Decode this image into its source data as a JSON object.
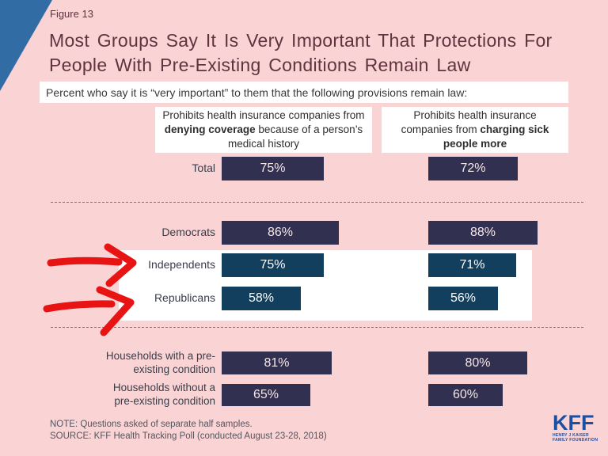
{
  "figure_label": "Figure 13",
  "title_line1": "Most Groups Say It Is Very Important That Protections For",
  "title_line2": "People With Pre-Existing Conditions Remain Law",
  "subtitle": "Percent who say it is “very important” to them that the following provisions remain law:",
  "column_headers": [
    {
      "pre": "Prohibits health insurance companies from ",
      "bold": "denying coverage",
      "post": " because of a person’s medical history"
    },
    {
      "pre": "Prohibits health insurance companies from ",
      "bold": "charging sick people more",
      "post": ""
    }
  ],
  "chart_data": {
    "type": "bar",
    "orientation": "horizontal",
    "unit": "%",
    "xlim": [
      0,
      100
    ],
    "categories": [
      "Total",
      "Democrats",
      "Independents",
      "Republicans",
      "Households with a pre-\nexisting condition",
      "Households without a\npre-existing condition"
    ],
    "series": [
      {
        "name": "Prohibits health insurance companies from denying coverage because of a person’s medical history",
        "values": [
          75,
          86,
          75,
          58,
          81,
          65
        ]
      },
      {
        "name": "Prohibits health insurance companies from charging sick people more",
        "values": [
          72,
          88,
          71,
          56,
          80,
          60
        ]
      }
    ],
    "highlighted_categories": [
      "Independents",
      "Republicans"
    ],
    "annotations": [
      "hand-drawn red arrow pointing at Independents row",
      "hand-drawn red arrow pointing at Republicans row"
    ]
  },
  "note": "NOTE: Questions asked of separate half samples.",
  "source": "SOURCE: KFF Health Tracking Poll (conducted August 23-28, 2018)",
  "logo": {
    "text": "KFF",
    "sub1": "HENRY J KAISER",
    "sub2": "FAMILY FOUNDATION"
  },
  "colors": {
    "background": "#fad3d5",
    "corner_triangle": "#316ca5",
    "title": "#60333e",
    "bar_navy": "#323050",
    "bar_teal": "#133f5e",
    "bar_text_navy": "#f6e7e9",
    "bar_text_teal": "#fdfdfd",
    "arrow_red": "#e81414",
    "kff_blue": "#1b4fa0"
  }
}
